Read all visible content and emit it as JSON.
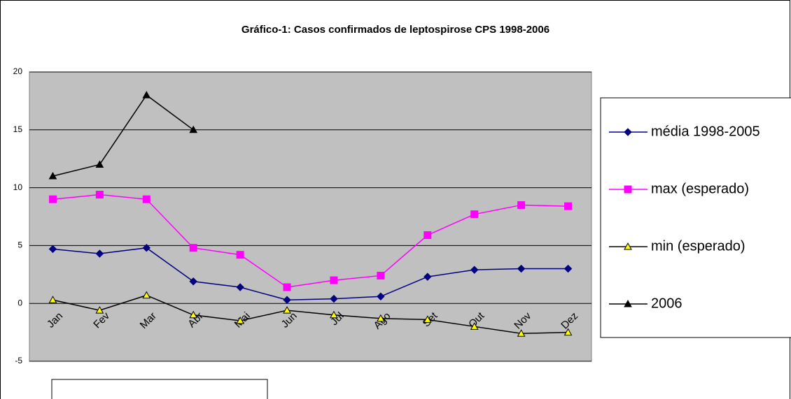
{
  "chart_data": {
    "type": "line",
    "title": "Gráfico-1: Casos confirmados de leptospirose CPS 1998-2006",
    "categories": [
      "Jan",
      "Fev",
      "Mar",
      "Abr",
      "Mai",
      "Jun",
      "Jul",
      "Ago",
      "Set",
      "Out",
      "Nov",
      "Dez"
    ],
    "series": [
      {
        "name": "média 1998-2005",
        "color": "#000080",
        "marker": "diamond",
        "values": [
          4.7,
          4.3,
          4.8,
          1.9,
          1.4,
          0.3,
          0.4,
          0.6,
          2.3,
          2.9,
          3.0,
          3.0
        ]
      },
      {
        "name": "max (esperado)",
        "color": "#ff00ff",
        "marker": "square",
        "values": [
          9.0,
          9.4,
          9.0,
          4.8,
          4.2,
          1.4,
          2.0,
          2.4,
          5.9,
          7.7,
          8.5,
          8.4
        ]
      },
      {
        "name": "min (esperado)",
        "color": "#000000",
        "marker": "triangle",
        "marker_fill": "#ffff00",
        "values": [
          0.3,
          -0.6,
          0.7,
          -1.0,
          -1.5,
          -0.6,
          -1.0,
          -1.3,
          -1.4,
          -2.0,
          -2.6,
          -2.5
        ]
      },
      {
        "name": "2006",
        "color": "#000000",
        "marker": "triangle",
        "marker_fill": "#000000",
        "values": [
          11,
          12,
          18,
          15,
          null,
          null,
          null,
          null,
          null,
          null,
          null,
          null
        ]
      }
    ],
    "ylim": [
      -5,
      20
    ],
    "yticks": [
      -5,
      0,
      5,
      10,
      15,
      20
    ],
    "grid": true,
    "plot_background": "#c0c0c0",
    "legend": "right"
  }
}
